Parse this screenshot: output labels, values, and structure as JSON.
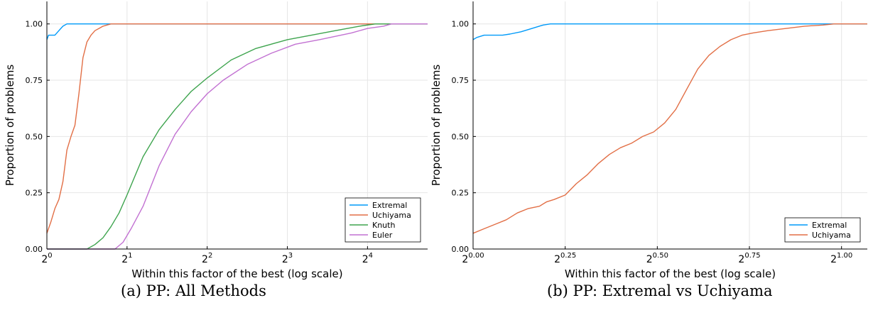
{
  "captions": {
    "a": "(a) PP: All Methods",
    "b": "(b) PP: Extremal vs Uchiyama"
  },
  "chart_data": [
    {
      "type": "line",
      "title": "",
      "xlabel": "Within this factor of the best (log scale)",
      "ylabel": "Proportion of problems",
      "xscale": "log2",
      "xlim": [
        0,
        4.75
      ],
      "ylim": [
        0,
        1.1
      ],
      "x_ticks": [
        0,
        1,
        2,
        3,
        4
      ],
      "x_tick_labels": [
        {
          "base": "2",
          "exp": "0"
        },
        {
          "base": "2",
          "exp": "1"
        },
        {
          "base": "2",
          "exp": "2"
        },
        {
          "base": "2",
          "exp": "3"
        },
        {
          "base": "2",
          "exp": "4"
        }
      ],
      "y_ticks": [
        0,
        0.25,
        0.5,
        0.75,
        1.0
      ],
      "y_tick_labels": [
        "0.00",
        "0.25",
        "0.50",
        "0.75",
        "1.00"
      ],
      "grid": true,
      "legend": "bottom-right",
      "series": [
        {
          "name": "Extremal",
          "color": "#009af9",
          "x_log2": [
            0,
            0.02,
            0.05,
            0.1,
            0.15,
            0.2,
            0.25,
            0.3,
            4.75
          ],
          "y": [
            0.93,
            0.95,
            0.95,
            0.95,
            0.97,
            0.99,
            1.0,
            1.0,
            1.0
          ]
        },
        {
          "name": "Uchiyama",
          "color": "#e26f46",
          "x_log2": [
            0,
            0.05,
            0.1,
            0.15,
            0.2,
            0.25,
            0.3,
            0.35,
            0.4,
            0.45,
            0.5,
            0.55,
            0.6,
            0.65,
            0.7,
            0.75,
            0.8,
            0.85,
            0.9,
            0.95,
            1.0,
            4.75
          ],
          "y": [
            0.07,
            0.12,
            0.18,
            0.22,
            0.3,
            0.44,
            0.5,
            0.55,
            0.69,
            0.85,
            0.92,
            0.95,
            0.97,
            0.98,
            0.99,
            0.995,
            1.0,
            1.0,
            1.0,
            1.0,
            1.0,
            1.0
          ]
        },
        {
          "name": "Knuth",
          "color": "#3ea44e",
          "x_log2": [
            0,
            0.5,
            0.6,
            0.7,
            0.8,
            0.9,
            1.0,
            1.2,
            1.4,
            1.6,
            1.8,
            2.0,
            2.3,
            2.6,
            3.0,
            3.3,
            3.6,
            3.9,
            4.1,
            4.2,
            4.75
          ],
          "y": [
            0,
            0,
            0.02,
            0.05,
            0.1,
            0.16,
            0.24,
            0.41,
            0.53,
            0.62,
            0.7,
            0.76,
            0.84,
            0.89,
            0.93,
            0.95,
            0.97,
            0.99,
            1.0,
            1.0,
            1.0
          ]
        },
        {
          "name": "Euler",
          "color": "#c271d2",
          "x_log2": [
            0,
            0.85,
            0.95,
            1.05,
            1.2,
            1.4,
            1.6,
            1.8,
            2.0,
            2.2,
            2.5,
            2.8,
            3.1,
            3.4,
            3.8,
            4.0,
            4.2,
            4.3,
            4.75
          ],
          "y": [
            0,
            0,
            0.03,
            0.09,
            0.19,
            0.37,
            0.51,
            0.61,
            0.69,
            0.75,
            0.82,
            0.87,
            0.91,
            0.93,
            0.96,
            0.98,
            0.99,
            1.0,
            1.0
          ]
        }
      ]
    },
    {
      "type": "line",
      "title": "",
      "xlabel": "Within this factor of the best (log scale)",
      "ylabel": "Proportion of problems",
      "xscale": "log2",
      "xlim": [
        0,
        1.07
      ],
      "ylim": [
        0,
        1.1
      ],
      "x_ticks": [
        0,
        0.25,
        0.5,
        0.75,
        1.0
      ],
      "x_tick_labels": [
        {
          "base": "2",
          "exp": "0.00"
        },
        {
          "base": "2",
          "exp": "0.25"
        },
        {
          "base": "2",
          "exp": "0.50"
        },
        {
          "base": "2",
          "exp": "0.75"
        },
        {
          "base": "2",
          "exp": "1.00"
        }
      ],
      "y_ticks": [
        0,
        0.25,
        0.5,
        0.75,
        1.0
      ],
      "y_tick_labels": [
        "0.00",
        "0.25",
        "0.50",
        "0.75",
        "1.00"
      ],
      "grid": true,
      "legend": "bottom-right",
      "series": [
        {
          "name": "Extremal",
          "color": "#009af9",
          "x_log2": [
            0,
            0.01,
            0.02,
            0.03,
            0.05,
            0.08,
            0.1,
            0.13,
            0.16,
            0.19,
            0.21,
            1.07
          ],
          "y": [
            0.93,
            0.94,
            0.945,
            0.95,
            0.95,
            0.95,
            0.955,
            0.965,
            0.98,
            0.995,
            1.0,
            1.0
          ]
        },
        {
          "name": "Uchiyama",
          "color": "#e26f46",
          "x_log2": [
            0,
            0.03,
            0.06,
            0.09,
            0.12,
            0.15,
            0.18,
            0.2,
            0.22,
            0.25,
            0.28,
            0.31,
            0.34,
            0.37,
            0.4,
            0.43,
            0.46,
            0.49,
            0.52,
            0.55,
            0.58,
            0.61,
            0.64,
            0.67,
            0.7,
            0.73,
            0.76,
            0.8,
            0.85,
            0.9,
            0.95,
            0.98,
            1.0,
            1.07
          ],
          "y": [
            0.07,
            0.09,
            0.11,
            0.13,
            0.16,
            0.18,
            0.19,
            0.21,
            0.22,
            0.24,
            0.29,
            0.33,
            0.38,
            0.42,
            0.45,
            0.47,
            0.5,
            0.52,
            0.56,
            0.62,
            0.71,
            0.8,
            0.86,
            0.9,
            0.93,
            0.95,
            0.96,
            0.97,
            0.98,
            0.99,
            0.995,
            1.0,
            1.0,
            1.0
          ]
        }
      ]
    }
  ]
}
